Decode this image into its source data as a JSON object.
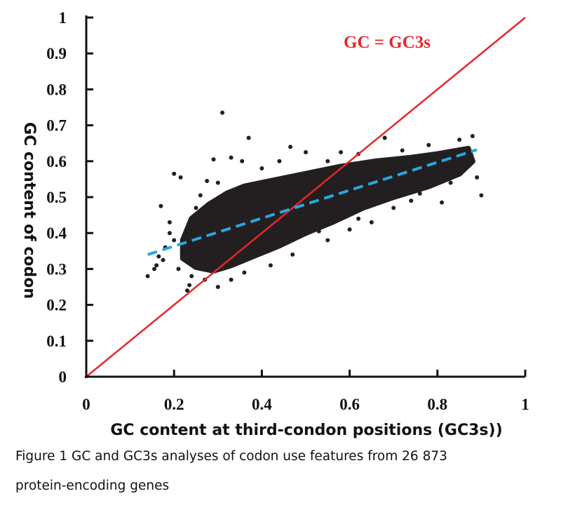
{
  "chart_data": {
    "type": "scatter",
    "xlabel": "GC content at third-condon positions (GC3s))",
    "ylabel": "GC content of codon",
    "xlim": [
      0,
      1
    ],
    "ylim": [
      0,
      1
    ],
    "x_ticks": [
      "0",
      "0.2",
      "0.4",
      "0.6",
      "0.8",
      "1"
    ],
    "y_ticks": [
      "0",
      "0.1",
      "0.2",
      "0.3",
      "0.4",
      "0.5",
      "0.6",
      "0.7",
      "0.8",
      "0.9",
      "1"
    ],
    "grid": false,
    "point_color": "#231f20",
    "dense_cloud_envelope": [
      [
        0.22,
        0.38
      ],
      [
        0.24,
        0.44
      ],
      [
        0.28,
        0.48
      ],
      [
        0.32,
        0.51
      ],
      [
        0.36,
        0.53
      ],
      [
        0.42,
        0.545
      ],
      [
        0.5,
        0.565
      ],
      [
        0.58,
        0.585
      ],
      [
        0.66,
        0.6
      ],
      [
        0.74,
        0.61
      ],
      [
        0.8,
        0.62
      ],
      [
        0.87,
        0.635
      ],
      [
        0.88,
        0.6
      ],
      [
        0.85,
        0.565
      ],
      [
        0.78,
        0.53
      ],
      [
        0.7,
        0.5
      ],
      [
        0.63,
        0.47
      ],
      [
        0.56,
        0.43
      ],
      [
        0.5,
        0.4
      ],
      [
        0.44,
        0.365
      ],
      [
        0.38,
        0.335
      ],
      [
        0.33,
        0.31
      ],
      [
        0.29,
        0.295
      ],
      [
        0.25,
        0.305
      ],
      [
        0.22,
        0.33
      ]
    ],
    "outlier_points": [
      [
        0.31,
        0.735
      ],
      [
        0.37,
        0.665
      ],
      [
        0.2,
        0.565
      ],
      [
        0.215,
        0.555
      ],
      [
        0.17,
        0.475
      ],
      [
        0.14,
        0.28
      ],
      [
        0.155,
        0.3
      ],
      [
        0.23,
        0.24
      ],
      [
        0.235,
        0.255
      ],
      [
        0.3,
        0.25
      ],
      [
        0.33,
        0.27
      ],
      [
        0.29,
        0.605
      ],
      [
        0.33,
        0.61
      ],
      [
        0.355,
        0.6
      ],
      [
        0.9,
        0.505
      ],
      [
        0.89,
        0.555
      ],
      [
        0.81,
        0.485
      ],
      [
        0.68,
        0.665
      ],
      [
        0.85,
        0.66
      ],
      [
        0.88,
        0.67
      ],
      [
        0.76,
        0.51
      ],
      [
        0.65,
        0.43
      ],
      [
        0.6,
        0.41
      ],
      [
        0.55,
        0.38
      ],
      [
        0.53,
        0.405
      ],
      [
        0.2,
        0.38
      ],
      [
        0.18,
        0.36
      ],
      [
        0.19,
        0.43
      ],
      [
        0.165,
        0.335
      ],
      [
        0.26,
        0.505
      ],
      [
        0.275,
        0.545
      ],
      [
        0.465,
        0.64
      ],
      [
        0.5,
        0.625
      ],
      [
        0.58,
        0.625
      ],
      [
        0.16,
        0.31
      ],
      [
        0.21,
        0.3
      ],
      [
        0.24,
        0.28
      ],
      [
        0.27,
        0.27
      ],
      [
        0.36,
        0.29
      ],
      [
        0.42,
        0.31
      ],
      [
        0.47,
        0.34
      ],
      [
        0.62,
        0.44
      ],
      [
        0.7,
        0.47
      ],
      [
        0.74,
        0.49
      ],
      [
        0.83,
        0.54
      ],
      [
        0.86,
        0.58
      ],
      [
        0.78,
        0.645
      ],
      [
        0.72,
        0.63
      ],
      [
        0.62,
        0.62
      ],
      [
        0.55,
        0.6
      ],
      [
        0.44,
        0.6
      ],
      [
        0.4,
        0.58
      ],
      [
        0.3,
        0.54
      ],
      [
        0.25,
        0.47
      ],
      [
        0.19,
        0.4
      ],
      [
        0.175,
        0.325
      ]
    ],
    "series": [
      {
        "name": "GC = GC3s",
        "type": "line",
        "color": "#e8262a",
        "x": [
          0,
          1
        ],
        "y": [
          0,
          1
        ]
      },
      {
        "type": "trend-line",
        "style": "dashed",
        "color": "#27a8e0",
        "x": [
          0.14,
          0.89
        ],
        "y": [
          0.34,
          0.632
        ]
      }
    ],
    "annotations": [
      {
        "text": "GC = GC3s",
        "color": "#e8262a"
      }
    ]
  },
  "caption": {
    "line1": "Figure 1 GC and GC3s analyses of codon use features from 26 873",
    "line2": "protein-encoding genes"
  }
}
